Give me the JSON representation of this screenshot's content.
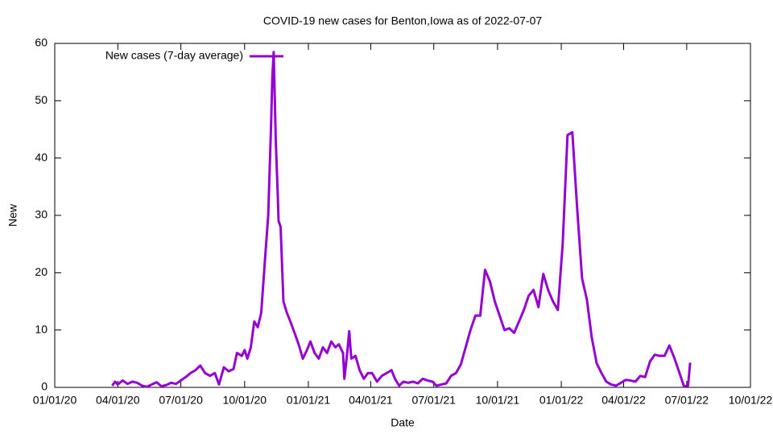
{
  "chart_data": {
    "type": "line",
    "title": "COVID-19 new cases for Benton,Iowa as of 2022-07-07",
    "x_label": "Date",
    "y_label": "New",
    "xlim": [
      "2020-01-01",
      "2022-10-01"
    ],
    "xticks": [
      {
        "value": "2020-01-01",
        "label": "01/01/20"
      },
      {
        "value": "2020-04-01",
        "label": "04/01/20"
      },
      {
        "value": "2020-07-01",
        "label": "07/01/20"
      },
      {
        "value": "2020-10-01",
        "label": "10/01/20"
      },
      {
        "value": "2021-01-01",
        "label": "01/01/21"
      },
      {
        "value": "2021-04-01",
        "label": "04/01/21"
      },
      {
        "value": "2021-07-01",
        "label": "07/01/21"
      },
      {
        "value": "2021-10-01",
        "label": "10/01/21"
      },
      {
        "value": "2022-01-01",
        "label": "01/01/22"
      },
      {
        "value": "2022-04-01",
        "label": "04/01/22"
      },
      {
        "value": "2022-07-01",
        "label": "07/01/22"
      },
      {
        "value": "2022-10-01",
        "label": "10/01/22"
      }
    ],
    "ylim": [
      0,
      60
    ],
    "yticks": [
      0,
      10,
      20,
      30,
      40,
      50,
      60
    ],
    "legend": "top-left",
    "x": [
      "2020-03-24",
      "2020-03-28",
      "2020-04-01",
      "2020-04-08",
      "2020-04-15",
      "2020-04-22",
      "2020-04-29",
      "2020-05-06",
      "2020-05-13",
      "2020-05-20",
      "2020-05-27",
      "2020-06-03",
      "2020-06-10",
      "2020-06-17",
      "2020-06-24",
      "2020-07-01",
      "2020-07-08",
      "2020-07-15",
      "2020-07-22",
      "2020-07-29",
      "2020-08-05",
      "2020-08-12",
      "2020-08-19",
      "2020-08-25",
      "2020-09-01",
      "2020-09-08",
      "2020-09-15",
      "2020-09-20",
      "2020-09-27",
      "2020-10-01",
      "2020-10-05",
      "2020-10-10",
      "2020-10-15",
      "2020-10-20",
      "2020-10-25",
      "2020-10-30",
      "2020-11-04",
      "2020-11-08",
      "2020-11-10",
      "2020-11-12",
      "2020-11-15",
      "2020-11-18",
      "2020-11-19",
      "2020-11-22",
      "2020-11-26",
      "2020-12-01",
      "2020-12-06",
      "2020-12-12",
      "2020-12-18",
      "2020-12-24",
      "2020-12-30",
      "2021-01-04",
      "2021-01-10",
      "2021-01-16",
      "2021-01-22",
      "2021-01-28",
      "2021-02-03",
      "2021-02-09",
      "2021-02-14",
      "2021-02-20",
      "2021-02-22",
      "2021-02-26",
      "2021-03-01",
      "2021-03-04",
      "2021-03-10",
      "2021-03-16",
      "2021-03-22",
      "2021-03-28",
      "2021-04-03",
      "2021-04-10",
      "2021-04-17",
      "2021-04-24",
      "2021-05-01",
      "2021-05-06",
      "2021-05-12",
      "2021-05-18",
      "2021-05-25",
      "2021-06-01",
      "2021-06-08",
      "2021-06-15",
      "2021-06-22",
      "2021-06-29",
      "2021-07-05",
      "2021-07-12",
      "2021-07-19",
      "2021-07-26",
      "2021-08-02",
      "2021-08-09",
      "2021-08-16",
      "2021-08-23",
      "2021-08-30",
      "2021-09-06",
      "2021-09-13",
      "2021-09-20",
      "2021-09-27",
      "2021-10-04",
      "2021-10-11",
      "2021-10-18",
      "2021-10-25",
      "2021-11-01",
      "2021-11-08",
      "2021-11-15",
      "2021-11-22",
      "2021-11-29",
      "2021-12-06",
      "2021-12-13",
      "2021-12-20",
      "2021-12-27",
      "2022-01-03",
      "2022-01-10",
      "2022-01-17",
      "2022-01-24",
      "2022-01-31",
      "2022-02-07",
      "2022-02-14",
      "2022-02-21",
      "2022-02-28",
      "2022-03-07",
      "2022-03-14",
      "2022-03-21",
      "2022-03-28",
      "2022-04-04",
      "2022-04-11",
      "2022-04-18",
      "2022-04-25",
      "2022-05-02",
      "2022-05-09",
      "2022-05-16",
      "2022-05-23",
      "2022-05-30",
      "2022-06-06",
      "2022-06-13",
      "2022-06-20",
      "2022-06-27",
      "2022-07-03",
      "2022-07-06"
    ],
    "series": [
      {
        "name": "New cases (7-day average)",
        "color": "#9400d3",
        "values": [
          0.3,
          1.0,
          0.5,
          1.2,
          0.6,
          1.0,
          0.8,
          0.3,
          0.1,
          0.5,
          0.9,
          0.2,
          0.4,
          0.8,
          0.6,
          1.2,
          1.8,
          2.5,
          3.0,
          3.8,
          2.5,
          2.0,
          2.5,
          0.5,
          3.5,
          2.8,
          3.2,
          6.0,
          5.5,
          6.5,
          5.0,
          7.0,
          11.5,
          10.5,
          13,
          21.5,
          30,
          45,
          54,
          58.5,
          43,
          33,
          29,
          28,
          15,
          13,
          11.5,
          9.5,
          7.5,
          5,
          6.5,
          8,
          6,
          5,
          7,
          6,
          8,
          7,
          7.5,
          6,
          1.5,
          6,
          9.8,
          5,
          5.5,
          3,
          1.5,
          2.5,
          2.5,
          1,
          2,
          2.5,
          3,
          1.5,
          0.3,
          1,
          0.8,
          1,
          0.7,
          1.5,
          1.2,
          1,
          0.3,
          0.5,
          0.7,
          2,
          2.5,
          4,
          7,
          10,
          12.5,
          12.5,
          20.5,
          18.5,
          15,
          12.5,
          10,
          10.3,
          9.5,
          11.5,
          13.5,
          16,
          17,
          14,
          19.8,
          17,
          15,
          13.5,
          25,
          44,
          44.5,
          31,
          19,
          15.3,
          8.7,
          4.2,
          2.5,
          1,
          0.5,
          0.3,
          0.8,
          1.3,
          1.2,
          1,
          2,
          1.8,
          4.5,
          5.7,
          5.5,
          5.5,
          7.3,
          5.2,
          2.7,
          0.2,
          0.3,
          4.3
        ]
      }
    ]
  }
}
